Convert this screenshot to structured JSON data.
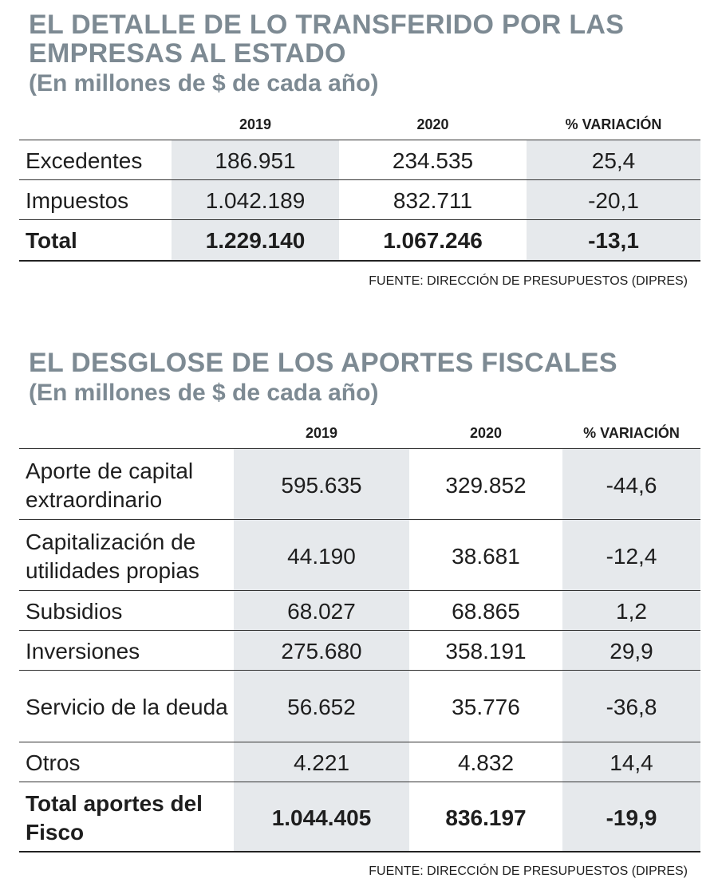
{
  "table1": {
    "title_line1": "EL DETALLE DE LO TRANSFERIDO POR LAS",
    "title_line2": "EMPRESAS AL ESTADO",
    "subtitle": "(En millones de $ de cada año)",
    "headers": [
      "2019",
      "2020",
      "% VARIACIÓN"
    ],
    "rows": [
      {
        "label": "Excedentes",
        "v2019": "186.951",
        "v2020": "234.535",
        "var": "25,4"
      },
      {
        "label": "Impuestos",
        "v2019": "1.042.189",
        "v2020": "832.711",
        "var": "-20,1"
      },
      {
        "label": "Total",
        "v2019": "1.229.140",
        "v2020": "1.067.246",
        "var": "-13,1"
      }
    ],
    "source": "FUENTE: DIRECCIÓN DE PRESUPUESTOS (DIPRES)"
  },
  "table2": {
    "title": "EL DESGLOSE DE LOS APORTES FISCALES",
    "subtitle": "(En millones de $ de cada año)",
    "headers": [
      "2019",
      "2020",
      "% VARIACIÓN"
    ],
    "rows": [
      {
        "label": "Aporte de capital extraordinario",
        "v2019": "595.635",
        "v2020": "329.852",
        "var": "-44,6"
      },
      {
        "label": "Capitalización de utilidades propias",
        "v2019": "44.190",
        "v2020": "38.681",
        "var": "-12,4"
      },
      {
        "label": "Subsidios",
        "v2019": "68.027",
        "v2020": "68.865",
        "var": "1,2"
      },
      {
        "label": "Inversiones",
        "v2019": "275.680",
        "v2020": "358.191",
        "var": "29,9"
      },
      {
        "label": "Servicio de la deuda",
        "v2019": "56.652",
        "v2020": "35.776",
        "var": "-36,8"
      },
      {
        "label": "Otros",
        "v2019": "4.221",
        "v2020": "4.832",
        "var": "14,4"
      },
      {
        "label": "Total aportes del Fisco",
        "v2019": "1.044.405",
        "v2020": "836.197",
        "var": "-19,9"
      }
    ],
    "source": "FUENTE: DIRECCIÓN DE PRESUPUESTOS (DIPRES)"
  }
}
